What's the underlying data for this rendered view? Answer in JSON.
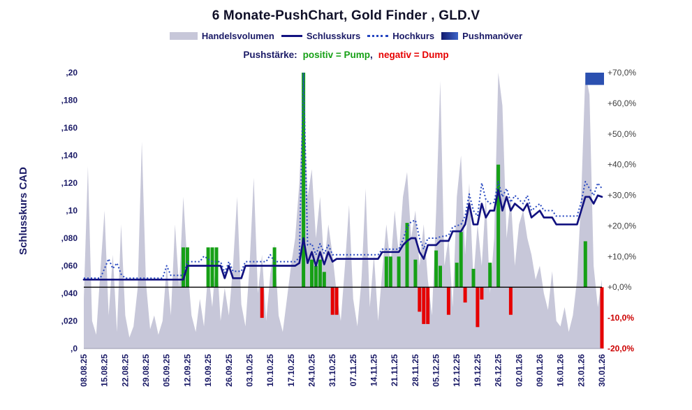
{
  "title": "6 Monate-PushChart, Gold Finder , GLD.V",
  "legend": [
    {
      "label": "Handelsvolumen",
      "type": "area",
      "color": "#c7c7d9"
    },
    {
      "label": "Schlusskurs",
      "type": "line",
      "color": "#121280"
    },
    {
      "label": "Hochkurs",
      "type": "dotted",
      "color": "#2546c0"
    },
    {
      "label": "Pushmanöver",
      "type": "bar",
      "color": "#2b50b0"
    }
  ],
  "subtitle": {
    "prefix": "Pushstärke:",
    "positive": "positiv = Pump",
    "comma": ",",
    "negative": "negativ = Dump",
    "positive_color": "#16a016",
    "negative_color": "#e60000"
  },
  "y_left": {
    "title": "Schlusskurs CAD",
    "labels": [
      ",20",
      ",180",
      ",160",
      ",140",
      ",120",
      ",10",
      ",080",
      ",060",
      ",040",
      ",020",
      ",0"
    ],
    "values": [
      0.2,
      0.18,
      0.16,
      0.14,
      0.12,
      0.1,
      0.08,
      0.06,
      0.04,
      0.02,
      0.0
    ]
  },
  "y_right": {
    "labels": [
      "+70,0%",
      "+60,0%",
      "+50,0%",
      "+40,0%",
      "+30,0%",
      "+20,0%",
      "+10,0%",
      "+0,0%",
      "-10,0%",
      "-20,0%"
    ],
    "values": [
      70,
      60,
      50,
      40,
      30,
      20,
      10,
      0,
      -10,
      -20
    ],
    "positive_color": "#404040",
    "negative_color": "#cc0000"
  },
  "chart_data": {
    "type": "composite",
    "subtypes": [
      "area",
      "line",
      "line-dotted",
      "bar"
    ],
    "x_tick_labels": [
      "08.08.25",
      "15.08.25",
      "22.08.25",
      "29.08.25",
      "05.09.25",
      "12.09.25",
      "19.09.25",
      "26.09.25",
      "03.10.25",
      "10.10.25",
      "17.10.25",
      "24.10.25",
      "31.10.25",
      "07.11.25",
      "14.11.25",
      "21.11.25",
      "28.11.25",
      "05.12.25",
      "12.12.25",
      "19.12.25",
      "26.12.25",
      "02.01.26",
      "09.01.26",
      "16.01.26",
      "23.01.26",
      "30.01.26"
    ],
    "x_days_per_tick": 5,
    "n_days": 126,
    "price_axis": {
      "min": 0.0,
      "max": 0.2,
      "unit": "CAD"
    },
    "pct_axis": {
      "min": -20,
      "max": 70,
      "unit": "%"
    },
    "colors": {
      "volume": "#c7c7d9",
      "close": "#121280",
      "high": "#2546c0",
      "pump": "#16a016",
      "dump": "#e60000",
      "maneuver": "#2b50b0",
      "axis_navy": "#1a1a66",
      "zero_line": "#000000"
    },
    "volume_rel": [
      0.18,
      0.66,
      0.1,
      0.05,
      0.28,
      0.5,
      0.12,
      0.34,
      0.06,
      0.45,
      0.12,
      0.04,
      0.08,
      0.22,
      0.75,
      0.24,
      0.07,
      0.12,
      0.05,
      0.1,
      0.3,
      0.12,
      0.45,
      0.22,
      0.55,
      0.3,
      0.12,
      0.06,
      0.18,
      0.08,
      0.28,
      0.15,
      0.35,
      0.1,
      0.22,
      0.12,
      0.3,
      0.55,
      0.16,
      0.08,
      0.3,
      0.62,
      0.2,
      0.34,
      0.1,
      0.27,
      0.38,
      0.12,
      0.06,
      0.18,
      0.3,
      0.4,
      0.6,
      0.95,
      0.55,
      0.65,
      0.4,
      0.55,
      0.3,
      0.45,
      0.34,
      0.2,
      0.1,
      0.3,
      0.52,
      0.18,
      0.08,
      0.25,
      0.58,
      0.15,
      0.34,
      0.1,
      0.28,
      0.45,
      0.3,
      0.5,
      0.34,
      0.55,
      0.64,
      0.4,
      0.5,
      0.3,
      0.45,
      0.25,
      0.12,
      0.5,
      0.97,
      0.3,
      0.4,
      0.15,
      0.55,
      0.7,
      0.34,
      0.6,
      0.25,
      0.45,
      0.3,
      0.55,
      0.2,
      0.4,
      1.0,
      0.88,
      0.4,
      0.55,
      0.3,
      0.45,
      0.5,
      0.4,
      0.34,
      0.25,
      0.3,
      0.2,
      0.14,
      0.28,
      0.1,
      0.08,
      0.15,
      0.06,
      0.12,
      0.25,
      0.55,
      1.0,
      0.92,
      0.3,
      0.15,
      0.25
    ],
    "close_points": [
      [
        0,
        0.05
      ],
      [
        24,
        0.05
      ],
      [
        25,
        0.06
      ],
      [
        33,
        0.06
      ],
      [
        34,
        0.051
      ],
      [
        35,
        0.06
      ],
      [
        36,
        0.051
      ],
      [
        38,
        0.051
      ],
      [
        39,
        0.06
      ],
      [
        51,
        0.06
      ],
      [
        52,
        0.062
      ],
      [
        53,
        0.08
      ],
      [
        54,
        0.062
      ],
      [
        55,
        0.07
      ],
      [
        56,
        0.06
      ],
      [
        57,
        0.07
      ],
      [
        58,
        0.061
      ],
      [
        59,
        0.07
      ],
      [
        60,
        0.063
      ],
      [
        61,
        0.065
      ],
      [
        71,
        0.065
      ],
      [
        72,
        0.07
      ],
      [
        76,
        0.07
      ],
      [
        77,
        0.075
      ],
      [
        78,
        0.078
      ],
      [
        79,
        0.08
      ],
      [
        80,
        0.08
      ],
      [
        81,
        0.07
      ],
      [
        82,
        0.065
      ],
      [
        83,
        0.075
      ],
      [
        85,
        0.075
      ],
      [
        86,
        0.078
      ],
      [
        88,
        0.078
      ],
      [
        89,
        0.085
      ],
      [
        91,
        0.085
      ],
      [
        92,
        0.09
      ],
      [
        93,
        0.105
      ],
      [
        94,
        0.09
      ],
      [
        95,
        0.09
      ],
      [
        96,
        0.105
      ],
      [
        97,
        0.095
      ],
      [
        98,
        0.1
      ],
      [
        99,
        0.1
      ],
      [
        100,
        0.115
      ],
      [
        101,
        0.1
      ],
      [
        102,
        0.11
      ],
      [
        103,
        0.1
      ],
      [
        104,
        0.105
      ],
      [
        106,
        0.1
      ],
      [
        107,
        0.105
      ],
      [
        108,
        0.095
      ],
      [
        110,
        0.1
      ],
      [
        111,
        0.095
      ],
      [
        113,
        0.095
      ],
      [
        114,
        0.09
      ],
      [
        119,
        0.09
      ],
      [
        120,
        0.1
      ],
      [
        121,
        0.11
      ],
      [
        122,
        0.11
      ],
      [
        123,
        0.105
      ],
      [
        124,
        0.111
      ],
      [
        125,
        0.11
      ]
    ],
    "high_points": [
      [
        0,
        0.051
      ],
      [
        4,
        0.051
      ],
      [
        5,
        0.058
      ],
      [
        6,
        0.065
      ],
      [
        7,
        0.058
      ],
      [
        8,
        0.062
      ],
      [
        9,
        0.054
      ],
      [
        10,
        0.051
      ],
      [
        19,
        0.051
      ],
      [
        20,
        0.06
      ],
      [
        21,
        0.053
      ],
      [
        24,
        0.053
      ],
      [
        25,
        0.063
      ],
      [
        28,
        0.063
      ],
      [
        29,
        0.067
      ],
      [
        31,
        0.063
      ],
      [
        33,
        0.063
      ],
      [
        34,
        0.055
      ],
      [
        35,
        0.063
      ],
      [
        36,
        0.056
      ],
      [
        38,
        0.056
      ],
      [
        39,
        0.063
      ],
      [
        44,
        0.063
      ],
      [
        45,
        0.068
      ],
      [
        46,
        0.063
      ],
      [
        51,
        0.063
      ],
      [
        52,
        0.066
      ],
      [
        53,
        0.2
      ],
      [
        54,
        0.075
      ],
      [
        55,
        0.076
      ],
      [
        56,
        0.068
      ],
      [
        57,
        0.076
      ],
      [
        58,
        0.069
      ],
      [
        59,
        0.075
      ],
      [
        60,
        0.068
      ],
      [
        71,
        0.068
      ],
      [
        72,
        0.072
      ],
      [
        76,
        0.072
      ],
      [
        77,
        0.079
      ],
      [
        78,
        0.088
      ],
      [
        79,
        0.092
      ],
      [
        80,
        0.093
      ],
      [
        81,
        0.08
      ],
      [
        82,
        0.072
      ],
      [
        83,
        0.08
      ],
      [
        85,
        0.08
      ],
      [
        86,
        0.081
      ],
      [
        88,
        0.082
      ],
      [
        89,
        0.088
      ],
      [
        91,
        0.09
      ],
      [
        92,
        0.096
      ],
      [
        93,
        0.112
      ],
      [
        94,
        0.1
      ],
      [
        95,
        0.096
      ],
      [
        96,
        0.12
      ],
      [
        97,
        0.108
      ],
      [
        98,
        0.105
      ],
      [
        99,
        0.106
      ],
      [
        100,
        0.121
      ],
      [
        101,
        0.11
      ],
      [
        102,
        0.116
      ],
      [
        103,
        0.106
      ],
      [
        104,
        0.111
      ],
      [
        106,
        0.105
      ],
      [
        107,
        0.111
      ],
      [
        108,
        0.1
      ],
      [
        110,
        0.105
      ],
      [
        111,
        0.1
      ],
      [
        113,
        0.1
      ],
      [
        114,
        0.096
      ],
      [
        119,
        0.096
      ],
      [
        120,
        0.106
      ],
      [
        121,
        0.121
      ],
      [
        122,
        0.116
      ],
      [
        123,
        0.111
      ],
      [
        124,
        0.12
      ],
      [
        125,
        0.116
      ]
    ],
    "push_bars": [
      {
        "day": 24,
        "pct": 13
      },
      {
        "day": 25,
        "pct": 13
      },
      {
        "day": 30,
        "pct": 13
      },
      {
        "day": 31,
        "pct": 13
      },
      {
        "day": 32,
        "pct": 13
      },
      {
        "day": 43,
        "pct": -10
      },
      {
        "day": 46,
        "pct": 13
      },
      {
        "day": 53,
        "pct": 70
      },
      {
        "day": 55,
        "pct": 9
      },
      {
        "day": 56,
        "pct": 7
      },
      {
        "day": 57,
        "pct": 9
      },
      {
        "day": 58,
        "pct": 5
      },
      {
        "day": 60,
        "pct": -9
      },
      {
        "day": 61,
        "pct": -9
      },
      {
        "day": 73,
        "pct": 10
      },
      {
        "day": 74,
        "pct": 10
      },
      {
        "day": 76,
        "pct": 10
      },
      {
        "day": 78,
        "pct": 21
      },
      {
        "day": 80,
        "pct": 9
      },
      {
        "day": 81,
        "pct": -8
      },
      {
        "day": 82,
        "pct": -12
      },
      {
        "day": 83,
        "pct": -12
      },
      {
        "day": 85,
        "pct": 12
      },
      {
        "day": 86,
        "pct": 7
      },
      {
        "day": 88,
        "pct": -9
      },
      {
        "day": 90,
        "pct": 8
      },
      {
        "day": 91,
        "pct": 18
      },
      {
        "day": 92,
        "pct": -5
      },
      {
        "day": 94,
        "pct": 6
      },
      {
        "day": 95,
        "pct": -13
      },
      {
        "day": 96,
        "pct": -4
      },
      {
        "day": 98,
        "pct": 8
      },
      {
        "day": 100,
        "pct": 40
      },
      {
        "day": 103,
        "pct": -9
      },
      {
        "day": 121,
        "pct": 15
      },
      {
        "day": 125,
        "pct": -20
      }
    ],
    "push_maneuver": {
      "day_start": 121,
      "day_end": 125,
      "pct_from": 66,
      "pct_to": 70
    }
  }
}
